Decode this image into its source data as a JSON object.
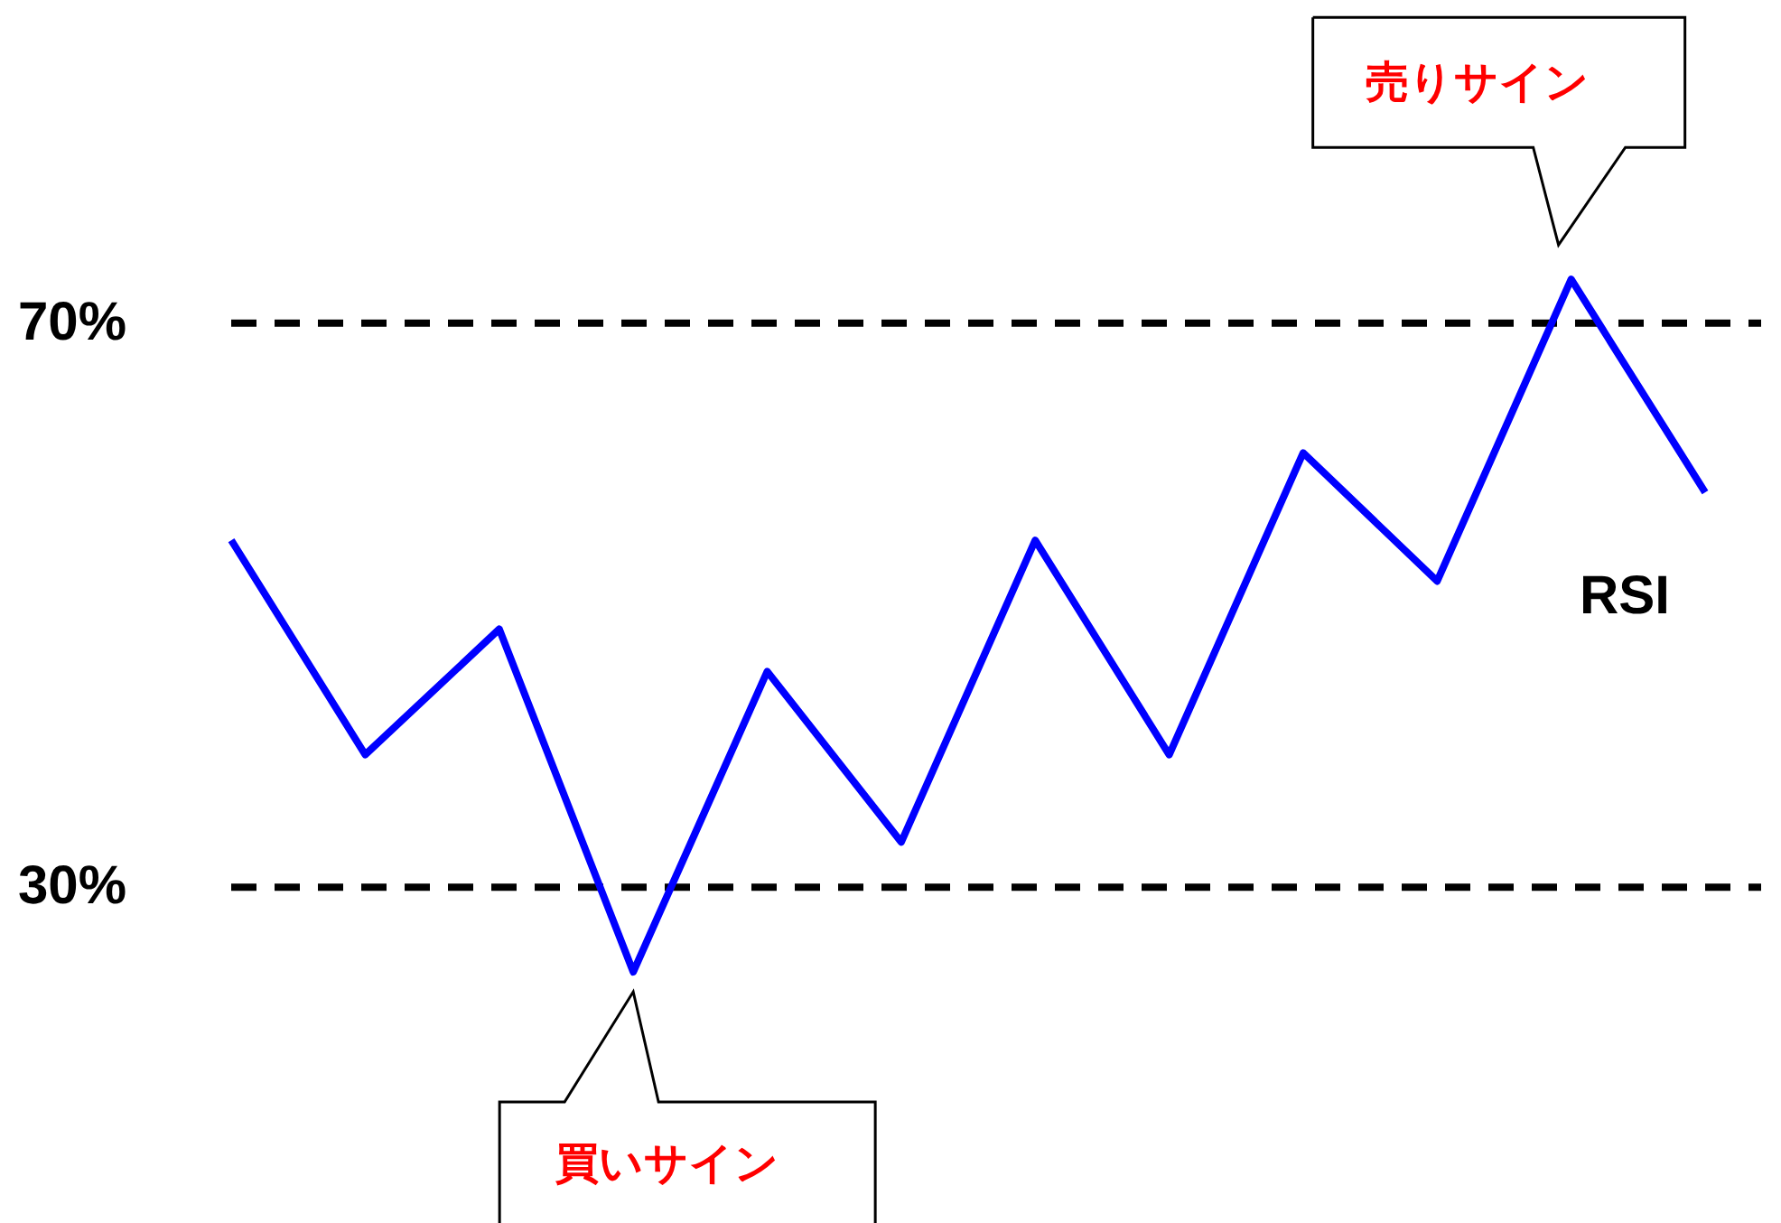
{
  "chart_data": {
    "type": "line",
    "categories": [
      null,
      null,
      null,
      null,
      null,
      null,
      null,
      null,
      null,
      null,
      null,
      null
    ],
    "series": [
      {
        "name": "RSI",
        "color": "#0000ff",
        "values": [
          54.6,
          39.4,
          48.3,
          24.0,
          45.3,
          33.2,
          54.6,
          39.4,
          60.8,
          51.7,
          73.1,
          58.0
        ]
      }
    ],
    "ylim": [
      6.2,
      92.9
    ],
    "yticks": [
      {
        "value": 30,
        "label": "30%"
      },
      {
        "value": 70,
        "label": "70%"
      }
    ],
    "ref_lines": [
      {
        "axis": "y",
        "value": 70,
        "color": "#000000",
        "line_style": "dashed"
      },
      {
        "axis": "y",
        "value": 30,
        "color": "#000000",
        "line_style": "dashed"
      }
    ],
    "annotations": [
      "売りサイン",
      "買いサイン"
    ],
    "marker": "none",
    "line_style": "solid"
  }
}
